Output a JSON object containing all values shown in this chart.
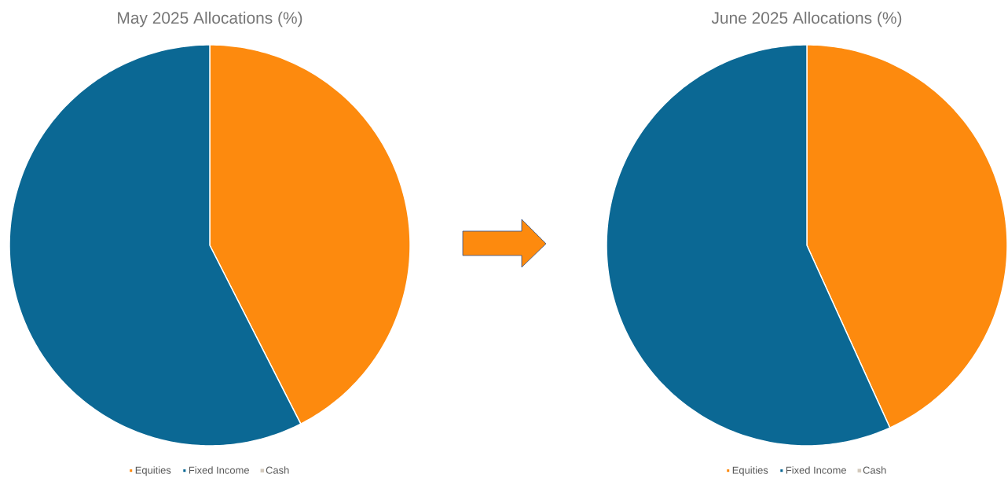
{
  "chart_data": [
    {
      "type": "pie",
      "title": "May 2025 Allocations (%)",
      "categories": [
        "Equities",
        "Fixed Income",
        "Cash"
      ],
      "values": [
        42.5,
        57.5,
        0
      ],
      "colors": [
        "#fd8a0e",
        "#0b6894",
        "#d2c8bb"
      ],
      "legend": "bottom"
    },
    {
      "type": "pie",
      "title": "June 2025 Allocations (%)",
      "categories": [
        "Equities",
        "Fixed Income",
        "Cash"
      ],
      "values": [
        43.2,
        56.8,
        0
      ],
      "colors": [
        "#fd8a0e",
        "#0b6894",
        "#d2c8bb"
      ],
      "legend": "bottom"
    }
  ]
}
